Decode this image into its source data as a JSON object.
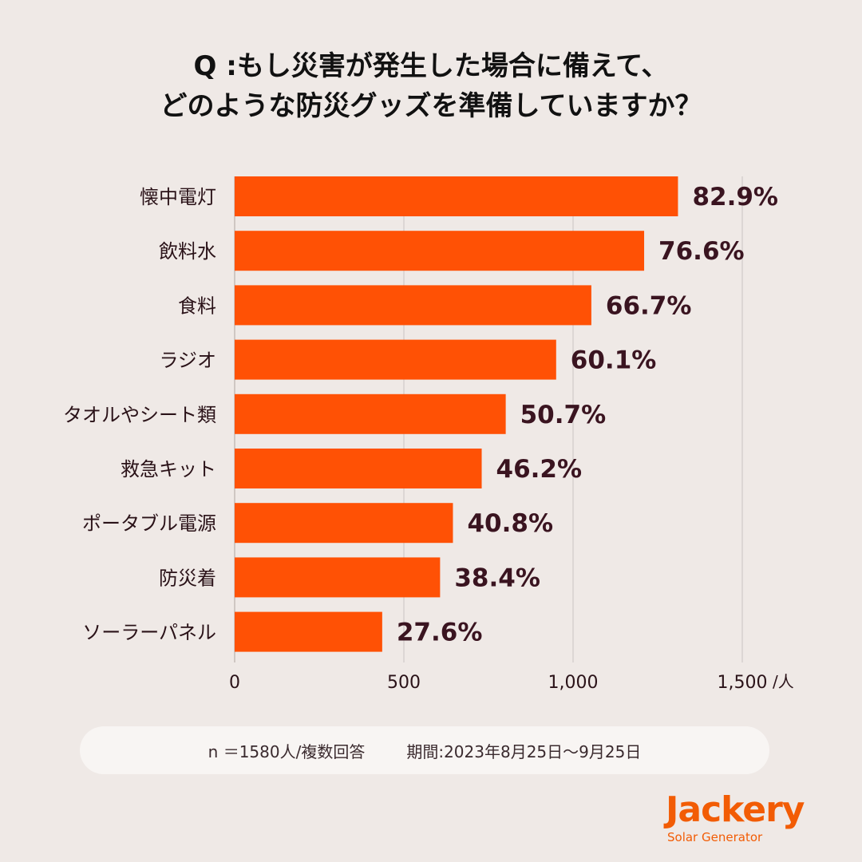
{
  "title": {
    "line1": "Q :もし災害が発生した場合に備えて、",
    "line2": "どのような防災グッズを準備していますか？"
  },
  "chart_data": {
    "type": "bar",
    "orientation": "horizontal",
    "categories": [
      "懐中電灯",
      "飲料水",
      "食料",
      "ラジオ",
      "タオルやシート類",
      "救急キット",
      "ポータブル電源",
      "防災着",
      "ソーラーパネル"
    ],
    "values": [
      1310,
      1210,
      1054,
      950,
      801,
      730,
      645,
      607,
      436
    ],
    "labels": [
      "82.9%",
      "76.6%",
      "66.7%",
      "60.1%",
      "50.7%",
      "46.2%",
      "40.8%",
      "38.4%",
      "27.6%"
    ],
    "xlim": [
      0,
      1500
    ],
    "xticks": [
      0,
      500,
      1000,
      1500
    ],
    "xtick_labels": [
      "0",
      "500",
      "1,000",
      "1,500"
    ],
    "xunit": "/人",
    "grid": true,
    "colors": {
      "bar": "#ff5105",
      "grid": "#d6d0cd",
      "value_text": "#3a1420"
    }
  },
  "note": {
    "sample": "n ＝1580人/複数回答",
    "period": "期間:2023年8月25日〜9月25日"
  },
  "logo": {
    "brand": "Jackery",
    "tagline": "Solar Generator"
  }
}
